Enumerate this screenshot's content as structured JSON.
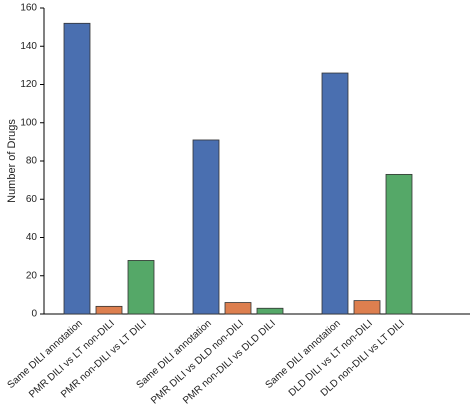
{
  "chart_data": {
    "type": "bar",
    "ylabel": "Number of Drugs",
    "categories": [
      "Same DILI annotation",
      "PMR DILI vs LT non-DILI",
      "PMR non-DILI vs LT DILI",
      "Same DILI annotation",
      "PMR DILI vs DLD non-DILI",
      "PMR non-DILI vs DLD DILI",
      "Same DILI annotation",
      "DLD DILI vs LT non-DILI",
      "DLD non-DILI vs LT DILI"
    ],
    "values": [
      152,
      4,
      28,
      91,
      6,
      3,
      126,
      7,
      73
    ],
    "colors": [
      "#4a6fb0",
      "#dd7f4f",
      "#55a868",
      "#4a6fb0",
      "#dd7f4f",
      "#55a868",
      "#4a6fb0",
      "#dd7f4f",
      "#55a868"
    ],
    "ylim": [
      0,
      160
    ],
    "yticks": [
      0,
      20,
      40,
      60,
      80,
      100,
      120,
      140,
      160
    ],
    "grid": false
  }
}
